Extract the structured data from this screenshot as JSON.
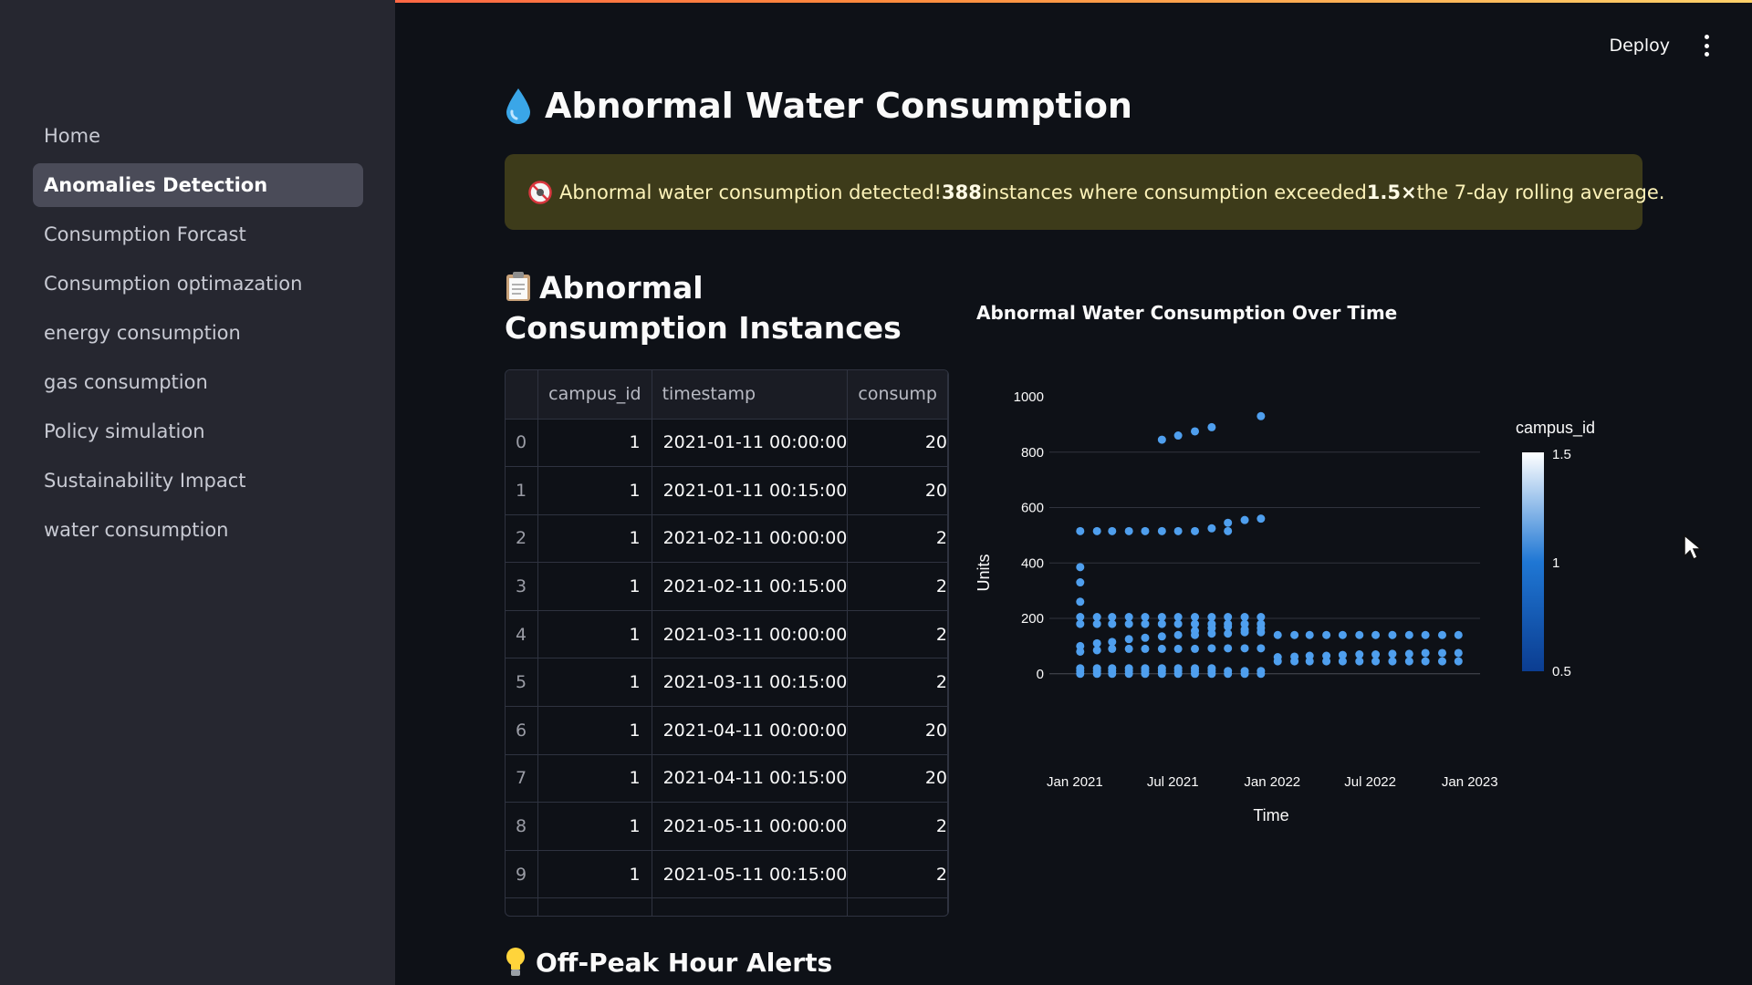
{
  "sidebar": {
    "items": [
      {
        "label": "Home",
        "active": false
      },
      {
        "label": "Anomalies Detection",
        "active": true
      },
      {
        "label": "Consumption Forcast",
        "active": false
      },
      {
        "label": "Consumption optimazation",
        "active": false
      },
      {
        "label": "energy consumption",
        "active": false
      },
      {
        "label": "gas consumption",
        "active": false
      },
      {
        "label": "Policy simulation",
        "active": false
      },
      {
        "label": "Sustainability Impact",
        "active": false
      },
      {
        "label": "water consumption",
        "active": false
      }
    ]
  },
  "header": {
    "deploy_label": "Deploy",
    "menu_icon": "kebab-menu-icon"
  },
  "page": {
    "title": "Abnormal Water Consumption",
    "title_icon": "water-drop-icon",
    "alert": {
      "icon": "no-entry-icon",
      "pre": "Abnormal water consumption detected! ",
      "count": "388",
      "mid": " instances where consumption exceeded ",
      "multiplier": "1.5×",
      "post": " the 7-day rolling average."
    },
    "table_section_title": "Abnormal Consumption Instances",
    "table_section_icon": "clipboard-icon",
    "offpeak_title": "Off-Peak Hour Alerts",
    "offpeak_icon": "light-bulb-icon"
  },
  "table": {
    "columns": [
      "",
      "campus_id",
      "timestamp",
      "consump"
    ],
    "rows": [
      {
        "index": "0",
        "campus_id": "1",
        "timestamp": "2021-01-11 00:00:00",
        "consumption": "20"
      },
      {
        "index": "1",
        "campus_id": "1",
        "timestamp": "2021-01-11 00:15:00",
        "consumption": "20"
      },
      {
        "index": "2",
        "campus_id": "1",
        "timestamp": "2021-02-11 00:00:00",
        "consumption": "2"
      },
      {
        "index": "3",
        "campus_id": "1",
        "timestamp": "2021-02-11 00:15:00",
        "consumption": "2"
      },
      {
        "index": "4",
        "campus_id": "1",
        "timestamp": "2021-03-11 00:00:00",
        "consumption": "2"
      },
      {
        "index": "5",
        "campus_id": "1",
        "timestamp": "2021-03-11 00:15:00",
        "consumption": "2"
      },
      {
        "index": "6",
        "campus_id": "1",
        "timestamp": "2021-04-11 00:00:00",
        "consumption": "20"
      },
      {
        "index": "7",
        "campus_id": "1",
        "timestamp": "2021-04-11 00:15:00",
        "consumption": "20"
      },
      {
        "index": "8",
        "campus_id": "1",
        "timestamp": "2021-05-11 00:00:00",
        "consumption": "2"
      },
      {
        "index": "9",
        "campus_id": "1",
        "timestamp": "2021-05-11 00:15:00",
        "consumption": "2"
      }
    ]
  },
  "chart_data": {
    "type": "scatter",
    "title": "Abnormal Water Consumption Over Time",
    "xlabel": "Time",
    "ylabel": "Units",
    "xlim": [
      "2020-11-15",
      "2023-01-20"
    ],
    "ylim": [
      -60,
      1000
    ],
    "xticks": [
      {
        "date": "2021-01-01",
        "label": "Jan 2021"
      },
      {
        "date": "2021-07-01",
        "label": "Jul 2021"
      },
      {
        "date": "2022-01-01",
        "label": "Jan 2022"
      },
      {
        "date": "2022-07-01",
        "label": "Jul 2022"
      },
      {
        "date": "2023-01-01",
        "label": "Jan 2023"
      }
    ],
    "yticks": [
      0,
      200,
      400,
      600,
      800,
      1000
    ],
    "grid": true,
    "colorbar": {
      "title": "campus_id",
      "ticks": [
        "1.5",
        "1",
        "0.5"
      ],
      "min": 0.5,
      "max": 1.5,
      "colors": [
        "#0b3d91",
        "#1f77d4",
        "#ffffff"
      ]
    },
    "marker_color": "#4f9fee",
    "series": [
      {
        "x": [
          "2021-01-11",
          "2021-02-11",
          "2021-03-11",
          "2021-04-11",
          "2021-05-11",
          "2021-06-11",
          "2021-07-11",
          "2021-08-11",
          "2021-09-11",
          "2021-10-11",
          "2021-11-11",
          "2021-12-11"
        ],
        "y": [
          10,
          10,
          10,
          10,
          10,
          10,
          10,
          10,
          10,
          10,
          10,
          10
        ]
      },
      {
        "x": [
          "2021-01-11",
          "2021-02-11",
          "2021-03-11",
          "2021-04-11",
          "2021-05-11",
          "2021-06-11",
          "2021-07-11",
          "2021-08-11",
          "2021-09-11",
          "2021-10-11",
          "2021-11-11",
          "2021-12-11"
        ],
        "y": [
          0,
          0,
          0,
          0,
          0,
          0,
          0,
          0,
          0,
          0,
          0,
          0
        ]
      },
      {
        "x": [
          "2021-01-11",
          "2021-02-11",
          "2021-03-11",
          "2021-04-11",
          "2021-05-11",
          "2021-06-11",
          "2021-07-11",
          "2021-08-11",
          "2021-09-11"
        ],
        "y": [
          20,
          20,
          20,
          20,
          20,
          20,
          20,
          20,
          20
        ]
      },
      {
        "x": [
          "2021-01-11",
          "2021-02-11",
          "2021-03-11",
          "2021-04-11",
          "2021-05-11",
          "2021-06-11",
          "2021-07-11",
          "2021-08-11",
          "2021-09-11",
          "2021-10-11",
          "2021-11-11",
          "2021-12-11"
        ],
        "y": [
          80,
          85,
          90,
          90,
          90,
          90,
          90,
          90,
          92,
          92,
          92,
          92
        ]
      },
      {
        "x": [
          "2021-01-11",
          "2021-02-11",
          "2021-03-11",
          "2021-04-11",
          "2021-05-11",
          "2021-06-11",
          "2021-07-11",
          "2021-08-11",
          "2021-09-11",
          "2021-10-11",
          "2021-11-11",
          "2021-12-11"
        ],
        "y": [
          100,
          110,
          115,
          125,
          130,
          135,
          140,
          140,
          145,
          145,
          150,
          150
        ]
      },
      {
        "x": [
          "2021-01-11",
          "2021-02-11",
          "2021-03-11",
          "2021-04-11",
          "2021-05-11",
          "2021-06-11",
          "2021-07-11",
          "2021-08-11",
          "2021-09-11",
          "2021-10-11",
          "2021-11-11",
          "2021-12-11"
        ],
        "y": [
          180,
          180,
          180,
          180,
          180,
          180,
          180,
          180,
          180,
          180,
          180,
          180
        ]
      },
      {
        "x": [
          "2021-01-11",
          "2021-02-11",
          "2021-03-11",
          "2021-04-11",
          "2021-05-11",
          "2021-06-11",
          "2021-07-11",
          "2021-08-11",
          "2021-09-11",
          "2021-10-11",
          "2021-11-11",
          "2021-12-11"
        ],
        "y": [
          205,
          205,
          205,
          205,
          205,
          205,
          205,
          205,
          205,
          205,
          205,
          205
        ]
      },
      {
        "x": [
          "2021-08-11",
          "2021-09-11",
          "2021-10-11",
          "2021-11-11",
          "2021-12-11"
        ],
        "y": [
          155,
          165,
          170,
          160,
          165
        ]
      },
      {
        "x": [
          "2021-01-11",
          "2021-01-11",
          "2021-01-11"
        ],
        "y": [
          260,
          330,
          385
        ]
      },
      {
        "x": [
          "2021-01-11",
          "2021-02-11",
          "2021-03-11",
          "2021-04-11",
          "2021-05-11",
          "2021-06-11",
          "2021-07-11",
          "2021-08-11",
          "2021-09-11",
          "2021-10-11",
          "2021-10-11",
          "2021-11-11",
          "2021-12-11"
        ],
        "y": [
          515,
          515,
          515,
          515,
          515,
          515,
          515,
          515,
          525,
          545,
          515,
          555,
          560
        ]
      },
      {
        "x": [
          "2021-06-11",
          "2021-07-11",
          "2021-08-11",
          "2021-09-11",
          "2021-12-11"
        ],
        "y": [
          845,
          860,
          875,
          890,
          930
        ]
      },
      {
        "x": [
          "2022-01-11",
          "2022-02-11",
          "2022-03-11",
          "2022-04-11",
          "2022-05-11",
          "2022-06-11",
          "2022-07-11",
          "2022-08-11",
          "2022-09-11",
          "2022-10-11",
          "2022-11-11",
          "2022-12-11"
        ],
        "y": [
          140,
          140,
          140,
          140,
          140,
          140,
          140,
          140,
          140,
          140,
          140,
          140
        ]
      },
      {
        "x": [
          "2022-01-11",
          "2022-02-11",
          "2022-03-11",
          "2022-04-11",
          "2022-05-11",
          "2022-06-11",
          "2022-07-11",
          "2022-08-11",
          "2022-09-11",
          "2022-10-11",
          "2022-11-11",
          "2022-12-11"
        ],
        "y": [
          60,
          62,
          65,
          65,
          68,
          70,
          70,
          72,
          72,
          75,
          75,
          75
        ]
      },
      {
        "x": [
          "2022-01-11",
          "2022-02-11",
          "2022-03-11",
          "2022-04-11",
          "2022-05-11",
          "2022-06-11",
          "2022-07-11",
          "2022-08-11",
          "2022-09-11",
          "2022-10-11",
          "2022-11-11",
          "2022-12-11"
        ],
        "y": [
          45,
          45,
          45,
          45,
          45,
          45,
          45,
          45,
          45,
          45,
          45,
          45
        ]
      }
    ]
  }
}
